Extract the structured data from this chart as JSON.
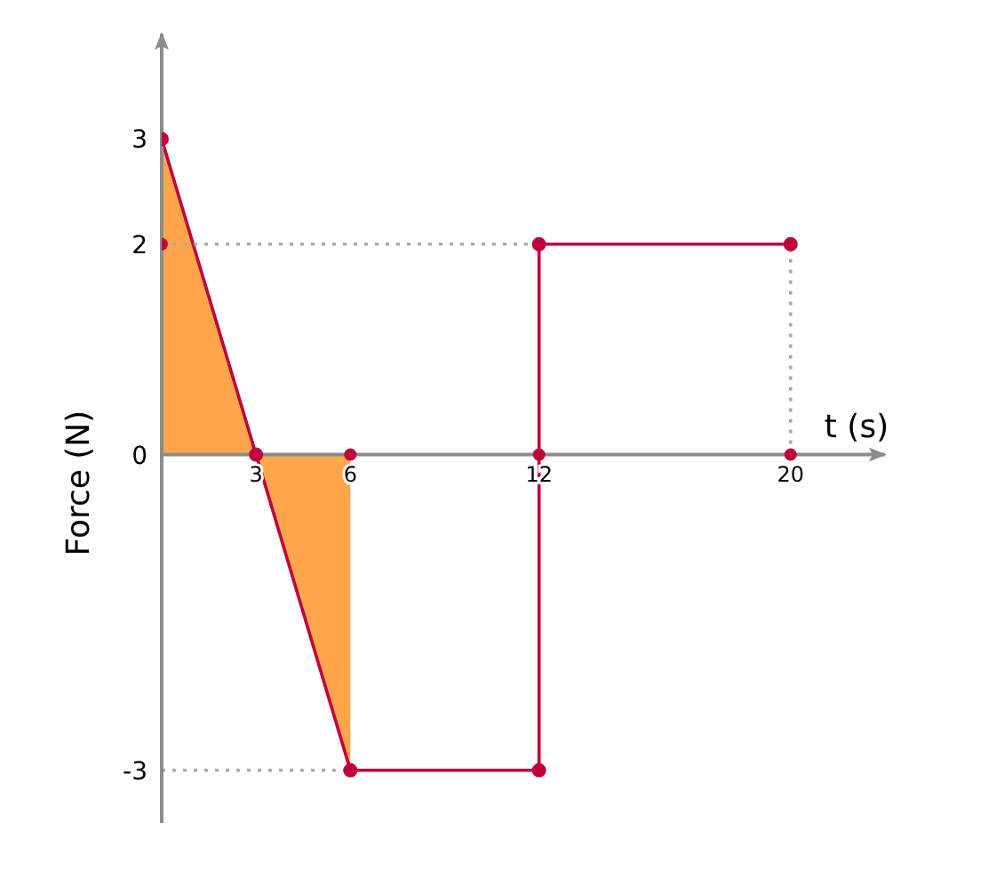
{
  "chart_data": {
    "type": "line",
    "xlabel": "t (s)",
    "ylabel": "Force (N)",
    "xlim": [
      0,
      23
    ],
    "ylim": [
      -3.5,
      4
    ],
    "xticks": [
      3,
      6,
      12,
      20
    ],
    "yticks": [
      -3,
      0,
      2,
      3
    ],
    "marker": "circle",
    "series": [
      {
        "type": "area",
        "color": "#ffa64d",
        "marker": "none",
        "x": [
          0,
          3,
          6
        ],
        "values": [
          3,
          0,
          -3
        ]
      },
      {
        "color": "#c0003c",
        "x": [
          0,
          3,
          6,
          12,
          12,
          20
        ],
        "values": [
          3,
          0,
          -3,
          -3,
          2,
          2
        ]
      },
      {
        "type": "scatter",
        "color": "#c0003c",
        "x": [
          0,
          6,
          12,
          20
        ],
        "values": [
          2,
          0,
          0,
          0
        ]
      },
      {
        "color": "#aaaaaa",
        "line_style": "dotted",
        "marker": "none",
        "x": [
          0,
          12
        ],
        "values": [
          2,
          2
        ]
      },
      {
        "color": "#aaaaaa",
        "line_style": "dotted",
        "marker": "none",
        "x": [
          0,
          6
        ],
        "values": [
          -3,
          -3
        ]
      },
      {
        "color": "#aaaaaa",
        "line_style": "dotted",
        "marker": "none",
        "x": [
          20,
          20
        ],
        "values": [
          0,
          2
        ]
      }
    ]
  }
}
